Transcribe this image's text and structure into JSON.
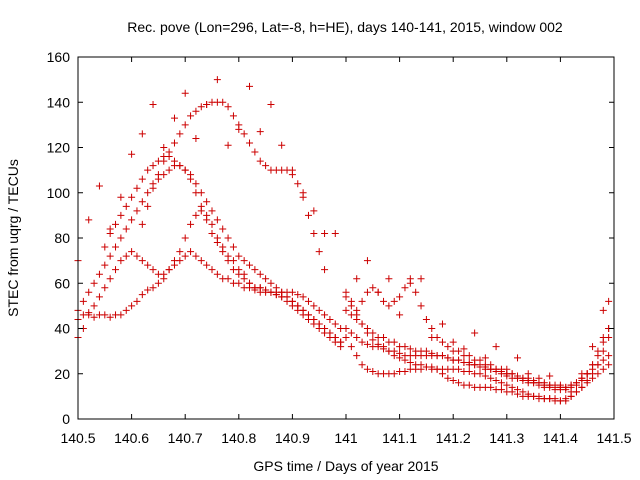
{
  "chart_data": {
    "type": "scatter",
    "title": "Rec. pove (Lon=296, Lat=-8, h=HE), days 140-141, 2015, window 002",
    "xlabel": "GPS time / Days of year 2015",
    "ylabel": "STEC from uqrg / TECUs",
    "xlim": [
      140.5,
      141.5
    ],
    "ylim": [
      0,
      160
    ],
    "xticks": [
      140.5,
      140.6,
      140.7,
      140.8,
      140.9,
      141,
      141.1,
      141.2,
      141.3,
      141.4,
      141.5
    ],
    "xtick_labels": [
      "140.5",
      "140.6",
      "140.7",
      "140.8",
      "140.9",
      "141",
      "141.1",
      "141.2",
      "141.3",
      "141.4",
      "141.5"
    ],
    "yticks": [
      0,
      20,
      40,
      60,
      80,
      100,
      120,
      140,
      160
    ],
    "ytick_labels": [
      "0",
      "20",
      "40",
      "60",
      "80",
      "100",
      "120",
      "140",
      "160"
    ],
    "grid": false,
    "marker": "+",
    "color": "#cc0000",
    "series": [
      {
        "x": [
          140.5,
          140.51,
          140.52,
          140.53,
          140.54,
          140.55,
          140.56,
          140.57,
          140.58,
          140.59,
          140.6,
          140.61,
          140.62,
          140.63,
          140.64,
          140.65,
          140.66,
          140.67,
          140.68,
          140.69,
          140.7,
          140.71,
          140.72,
          140.73,
          140.74,
          140.75,
          140.76,
          140.77,
          140.78,
          140.79,
          140.8,
          140.81,
          140.82,
          140.83,
          140.84,
          140.85,
          140.86,
          140.87,
          140.88,
          140.89,
          140.9,
          140.91,
          140.92,
          140.93,
          140.94,
          140.95,
          140.96,
          140.97,
          140.98,
          140.99
        ],
        "y": [
          44,
          46,
          47,
          45,
          46,
          46,
          45,
          46,
          46,
          48,
          50,
          52,
          55,
          57,
          58,
          60,
          62,
          66,
          70,
          74,
          80,
          86,
          90,
          92,
          90,
          86,
          80,
          76,
          72,
          70,
          66,
          64,
          60,
          58,
          58,
          57,
          56,
          55,
          54,
          54,
          52,
          50,
          48,
          46,
          44,
          42,
          40,
          38,
          36,
          34
        ]
      },
      {
        "x": [
          140.5,
          140.51,
          140.52,
          140.53,
          140.54,
          140.55,
          140.56,
          140.57,
          140.58,
          140.59,
          140.6,
          140.61,
          140.62,
          140.63,
          140.64,
          140.65,
          140.66,
          140.67,
          140.68,
          140.69,
          140.7,
          140.71,
          140.72,
          140.73,
          140.74,
          140.75,
          140.76,
          140.77,
          140.78,
          140.79,
          140.8,
          140.81,
          140.82,
          140.83,
          140.84,
          140.85,
          140.86,
          140.87,
          140.88,
          140.89,
          140.9,
          140.91,
          140.92,
          140.93,
          140.94,
          140.95,
          140.96,
          140.97,
          140.98,
          140.99
        ],
        "y": [
          48,
          52,
          56,
          60,
          64,
          68,
          72,
          76,
          80,
          84,
          88,
          92,
          96,
          100,
          104,
          106,
          108,
          110,
          112,
          112,
          110,
          108,
          104,
          100,
          96,
          92,
          88,
          84,
          80,
          76,
          72,
          70,
          68,
          66,
          64,
          62,
          60,
          58,
          56,
          54,
          52,
          50,
          48,
          46,
          44,
          42,
          40,
          38,
          36,
          34
        ]
      },
      {
        "x": [
          140.5,
          140.51,
          140.52,
          140.53,
          140.54,
          140.55,
          140.56,
          140.57,
          140.58,
          140.59,
          140.6,
          140.61,
          140.62,
          140.63,
          140.64,
          140.65,
          140.66,
          140.67,
          140.68,
          140.69,
          140.7,
          140.71,
          140.72,
          140.73,
          140.74,
          140.75,
          140.76,
          140.77,
          140.78,
          140.79,
          140.8,
          140.81,
          140.82,
          140.83,
          140.84,
          140.85,
          140.86,
          140.87,
          140.88,
          140.89,
          140.9,
          140.91,
          140.92,
          140.93,
          140.94,
          140.95,
          140.96,
          140.97,
          140.98,
          140.99
        ],
        "y": [
          36,
          40,
          46,
          50,
          54,
          58,
          62,
          66,
          70,
          72,
          74,
          72,
          70,
          68,
          66,
          64,
          64,
          66,
          68,
          70,
          72,
          74,
          72,
          70,
          68,
          66,
          64,
          62,
          62,
          60,
          60,
          58,
          58,
          57,
          56,
          56,
          56,
          56,
          56,
          56,
          56,
          55,
          54,
          52,
          50,
          48,
          46,
          44,
          42,
          40
        ]
      },
      {
        "x": [
          140.55,
          140.56,
          140.57,
          140.58,
          140.59,
          140.6,
          140.61,
          140.62,
          140.63,
          140.64,
          140.65,
          140.66,
          140.67,
          140.68,
          140.69,
          140.7,
          140.71,
          140.72,
          140.73,
          140.74,
          140.75,
          140.76,
          140.77,
          140.78,
          140.79,
          140.8,
          140.81,
          140.82,
          140.83,
          140.84,
          140.85,
          140.86,
          140.87,
          140.88,
          140.89,
          140.9,
          140.91,
          140.92,
          140.93,
          140.94,
          140.95,
          140.96,
          140.97,
          140.98,
          140.99
        ],
        "y": [
          76,
          82,
          86,
          90,
          94,
          98,
          102,
          106,
          110,
          112,
          114,
          116,
          116,
          114,
          112,
          110,
          106,
          100,
          94,
          88,
          82,
          78,
          74,
          70,
          66,
          64,
          62,
          60,
          58,
          58,
          57,
          56,
          55,
          54,
          52,
          50,
          48,
          46,
          44,
          42,
          40,
          38,
          36,
          34,
          32
        ]
      },
      {
        "x": [
          140.62,
          140.63,
          140.64,
          140.65,
          140.66,
          140.67,
          140.68,
          140.69,
          140.7,
          140.71,
          140.72,
          140.73,
          140.74,
          140.75,
          140.76,
          140.77,
          140.78,
          140.79,
          140.8,
          140.81,
          140.82,
          140.83,
          140.84,
          140.85,
          140.86,
          140.87,
          140.88,
          140.89,
          140.9,
          140.91,
          140.92,
          140.93,
          140.94,
          140.95,
          140.96
        ],
        "y": [
          86,
          94,
          102,
          108,
          114,
          118,
          122,
          126,
          130,
          134,
          136,
          138,
          139,
          140,
          140,
          140,
          138,
          134,
          130,
          126,
          122,
          118,
          114,
          112,
          110,
          110,
          110,
          110,
          108,
          104,
          98,
          90,
          82,
          74,
          66
        ]
      },
      {
        "x": [
          140.5,
          140.52,
          140.54,
          140.56,
          140.58,
          140.6,
          140.62,
          140.64,
          140.66,
          140.68,
          140.7,
          140.72,
          140.74,
          140.76,
          140.78,
          140.8,
          140.82,
          140.84,
          140.86,
          140.88,
          140.9,
          140.92,
          140.94,
          140.96,
          140.98
        ],
        "y": [
          70,
          88,
          103,
          84,
          98,
          117,
          126,
          139,
          120,
          133,
          144,
          124,
          139,
          150,
          121,
          128,
          147,
          127,
          139,
          121,
          110,
          100,
          92,
          82,
          82
        ]
      },
      {
        "x": [
          141.0,
          141.01,
          141.02,
          141.03,
          141.04,
          141.05,
          141.06,
          141.07,
          141.08,
          141.09,
          141.1,
          141.11,
          141.12,
          141.13,
          141.14,
          141.15,
          141.16,
          141.17,
          141.18,
          141.19,
          141.2,
          141.21,
          141.22,
          141.23,
          141.24,
          141.25,
          141.26,
          141.27,
          141.28,
          141.29,
          141.3,
          141.31,
          141.32,
          141.33,
          141.34,
          141.35,
          141.36,
          141.37,
          141.38,
          141.39,
          141.4,
          141.41,
          141.42,
          141.43,
          141.44,
          141.45,
          141.46,
          141.47,
          141.48,
          141.49
        ],
        "y": [
          56,
          52,
          48,
          52,
          56,
          58,
          56,
          52,
          50,
          52,
          54,
          58,
          62,
          56,
          50,
          44,
          40,
          36,
          34,
          32,
          30,
          30,
          28,
          28,
          26,
          26,
          24,
          24,
          22,
          22,
          20,
          20,
          18,
          18,
          17,
          16,
          16,
          15,
          15,
          14,
          14,
          14,
          15,
          16,
          18,
          20,
          24,
          30,
          36,
          40
        ]
      },
      {
        "x": [
          141.0,
          141.01,
          141.02,
          141.03,
          141.04,
          141.05,
          141.06,
          141.07,
          141.08,
          141.09,
          141.1,
          141.11,
          141.12,
          141.13,
          141.14,
          141.15,
          141.16,
          141.17,
          141.18,
          141.19,
          141.2,
          141.21,
          141.22,
          141.23,
          141.24,
          141.25,
          141.26,
          141.27,
          141.28,
          141.29,
          141.3,
          141.31,
          141.32,
          141.33,
          141.34,
          141.35,
          141.36,
          141.37,
          141.38,
          141.39,
          141.4,
          141.41,
          141.42,
          141.43,
          141.44,
          141.45,
          141.46,
          141.47,
          141.48,
          141.49
        ],
        "y": [
          48,
          46,
          44,
          42,
          40,
          38,
          36,
          36,
          34,
          34,
          32,
          32,
          31,
          30,
          30,
          30,
          29,
          28,
          28,
          27,
          26,
          26,
          25,
          24,
          24,
          23,
          22,
          22,
          21,
          20,
          19,
          18,
          18,
          17,
          16,
          16,
          15,
          14,
          14,
          13,
          13,
          13,
          14,
          15,
          17,
          20,
          24,
          28,
          34,
          40
        ]
      },
      {
        "x": [
          141.0,
          141.01,
          141.02,
          141.03,
          141.04,
          141.05,
          141.06,
          141.07,
          141.08,
          141.09,
          141.1,
          141.11,
          141.12,
          141.13,
          141.14,
          141.15,
          141.16,
          141.17,
          141.18,
          141.19,
          141.2,
          141.21,
          141.22,
          141.23,
          141.24,
          141.25,
          141.26,
          141.27,
          141.28,
          141.29,
          141.3,
          141.31,
          141.32,
          141.33,
          141.34,
          141.35,
          141.36,
          141.37,
          141.38,
          141.39,
          141.4,
          141.41,
          141.42,
          141.43,
          141.44,
          141.45,
          141.46,
          141.47,
          141.48,
          141.49
        ],
        "y": [
          40,
          38,
          36,
          34,
          33,
          32,
          32,
          31,
          30,
          30,
          29,
          28,
          28,
          28,
          28,
          28,
          28,
          28,
          28,
          27,
          26,
          26,
          25,
          25,
          24,
          24,
          23,
          22,
          22,
          21,
          20,
          20,
          19,
          18,
          18,
          17,
          16,
          16,
          15,
          15,
          14,
          14,
          15,
          16,
          18,
          20,
          22,
          24,
          26,
          28
        ]
      },
      {
        "x": [
          141.0,
          141.01,
          141.02,
          141.03,
          141.04,
          141.05,
          141.06,
          141.07,
          141.08,
          141.09,
          141.1,
          141.11,
          141.12,
          141.13,
          141.14,
          141.15,
          141.16,
          141.17,
          141.18,
          141.19,
          141.2,
          141.21,
          141.22,
          141.23,
          141.24,
          141.25,
          141.26,
          141.27,
          141.28,
          141.29,
          141.3,
          141.31,
          141.32,
          141.33,
          141.34,
          141.35,
          141.36,
          141.37,
          141.38,
          141.39,
          141.4,
          141.41,
          141.42,
          141.43,
          141.44,
          141.45,
          141.46,
          141.47,
          141.48,
          141.49
        ],
        "y": [
          36,
          32,
          28,
          24,
          22,
          21,
          20,
          20,
          20,
          20,
          21,
          21,
          22,
          22,
          22,
          23,
          23,
          22,
          20,
          18,
          17,
          16,
          15,
          15,
          14,
          14,
          14,
          14,
          13,
          13,
          12,
          12,
          11,
          10,
          10,
          10,
          9,
          9,
          9,
          8,
          8,
          8,
          10,
          12,
          14,
          16,
          18,
          20,
          22,
          24
        ]
      },
      {
        "x": [
          141.0,
          141.01,
          141.02,
          141.03,
          141.04,
          141.05,
          141.06,
          141.07,
          141.08,
          141.09,
          141.1,
          141.11,
          141.12,
          141.13,
          141.14,
          141.15,
          141.16,
          141.17,
          141.18,
          141.19,
          141.2,
          141.21,
          141.22,
          141.23,
          141.24,
          141.25,
          141.26,
          141.27,
          141.28,
          141.29,
          141.3,
          141.31,
          141.32,
          141.33,
          141.34,
          141.35,
          141.36,
          141.37,
          141.38,
          141.39,
          141.4,
          141.41,
          141.42,
          141.43,
          141.44,
          141.45,
          141.46,
          141.47,
          141.48,
          141.49
        ],
        "y": [
          54,
          50,
          46,
          42,
          38,
          35,
          33,
          32,
          30,
          28,
          27,
          26,
          25,
          24,
          24,
          23,
          22,
          22,
          22,
          22,
          22,
          22,
          21,
          21,
          20,
          20,
          19,
          18,
          17,
          16,
          15,
          14,
          13,
          12,
          11,
          10,
          10,
          9,
          9,
          9,
          8,
          9,
          10,
          12,
          14,
          17,
          20,
          24,
          30,
          36
        ]
      },
      {
        "x": [
          141.02,
          141.04,
          141.06,
          141.08,
          141.1,
          141.12,
          141.14,
          141.16,
          141.18,
          141.2,
          141.22,
          141.24,
          141.26,
          141.28,
          141.3,
          141.32,
          141.34,
          141.36,
          141.38,
          141.4,
          141.42,
          141.44,
          141.46,
          141.48,
          141.49
        ],
        "y": [
          62,
          70,
          56,
          62,
          46,
          60,
          62,
          36,
          42,
          34,
          31,
          38,
          27,
          32,
          22,
          27,
          20,
          18,
          19,
          15,
          12,
          20,
          32,
          48,
          52
        ]
      }
    ]
  }
}
